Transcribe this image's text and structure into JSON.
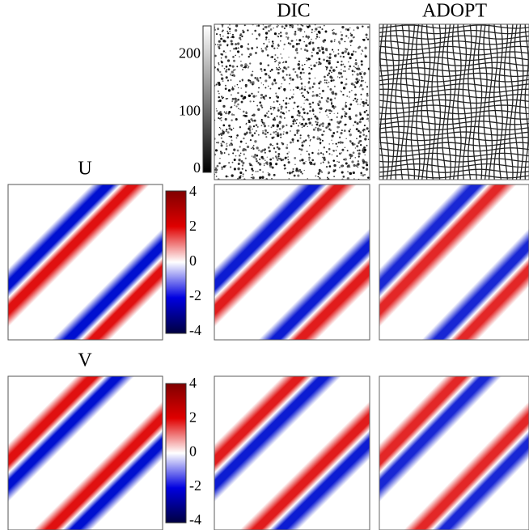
{
  "columns": {
    "dic": "DIC",
    "adopt": "ADOPT"
  },
  "rows": {
    "u": "U",
    "v": "V"
  },
  "gray_colorbar": {
    "ticks": [
      200,
      100,
      0
    ]
  },
  "u_colorbar": {
    "ticks": [
      4,
      2,
      0,
      -2,
      -4
    ]
  },
  "v_colorbar": {
    "ticks": [
      4,
      2,
      0,
      -2,
      -4
    ]
  }
}
